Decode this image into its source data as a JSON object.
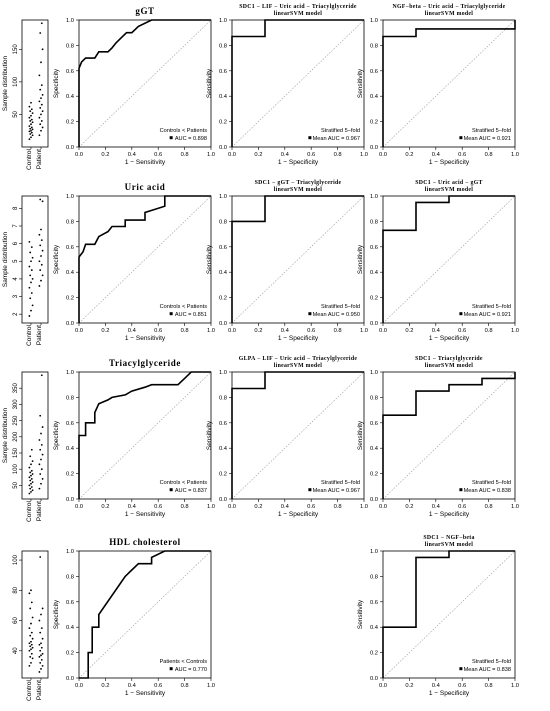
{
  "chart_data": {
    "type": "roc_figure",
    "rows": [
      {
        "strip": {
          "ylabel": "Sample distribution",
          "xlabels": [
            "Control",
            "Patient"
          ],
          "ylim": [
            0,
            195
          ],
          "yticks": [
            50,
            100,
            150
          ],
          "control": [
            12,
            15,
            18,
            20,
            22,
            24,
            25,
            27,
            28,
            30,
            32,
            35,
            38,
            40,
            42,
            45,
            48,
            52,
            55,
            58,
            62,
            68
          ],
          "patient": [
            18,
            25,
            30,
            35,
            40,
            45,
            50,
            55,
            60,
            65,
            70,
            75,
            80,
            88,
            95,
            110,
            130,
            150,
            175,
            190
          ]
        },
        "roc": [
          {
            "title": "gGT",
            "title_lines": [],
            "ylabel": "Specificity",
            "xlabel": "1 − Sensitivity",
            "legend": [
              "Controls < Patients",
              "AUC = 0.898"
            ],
            "legend_marker": 1,
            "curve": [
              [
                0,
                0
              ],
              [
                0,
                0.62
              ],
              [
                0.02,
                0.67
              ],
              [
                0.05,
                0.7
              ],
              [
                0.12,
                0.7
              ],
              [
                0.15,
                0.75
              ],
              [
                0.22,
                0.75
              ],
              [
                0.25,
                0.78
              ],
              [
                0.28,
                0.82
              ],
              [
                0.32,
                0.86
              ],
              [
                0.36,
                0.9
              ],
              [
                0.4,
                0.9
              ],
              [
                0.45,
                0.95
              ],
              [
                0.55,
                1.0
              ],
              [
                1.0,
                1.0
              ]
            ]
          },
          {
            "title": "",
            "title_lines": [
              "SDC1 − LIF − Uric acid − Triacylglyceride",
              "linearSVM model"
            ],
            "ylabel": "Sensitivity",
            "xlabel": "1 − Specificity",
            "legend": [
              "Stratified 5−fold",
              "Mean AUC = 0.967"
            ],
            "legend_marker": 1,
            "curve": [
              [
                0,
                0
              ],
              [
                0,
                0.87
              ],
              [
                0.25,
                0.87
              ],
              [
                0.25,
                1.0
              ],
              [
                1.0,
                1.0
              ]
            ]
          },
          {
            "title": "",
            "title_lines": [
              "NGF−beta − Uric acid − Triacylglyceride",
              "linearSVM model"
            ],
            "ylabel": "Sensitivity",
            "xlabel": "1 − Specificity",
            "legend": [
              "Stratified 5−fold",
              "Mean AUC = 0.921"
            ],
            "legend_marker": 1,
            "curve": [
              [
                0,
                0
              ],
              [
                0,
                0.87
              ],
              [
                0.25,
                0.87
              ],
              [
                0.25,
                0.93
              ],
              [
                1.0,
                0.93
              ],
              [
                1.0,
                1.0
              ]
            ]
          }
        ]
      },
      {
        "strip": {
          "ylabel": "Sample distribution",
          "xlabels": [
            "Control",
            "Patient"
          ],
          "ylim": [
            1.5,
            8.7
          ],
          "yticks": [
            2,
            3,
            4,
            5,
            6,
            7,
            8
          ],
          "control": [
            1.9,
            2.2,
            2.5,
            2.9,
            3.2,
            3.5,
            3.8,
            4.0,
            4.2,
            4.5,
            4.7,
            5.0,
            5.2,
            5.5,
            5.8,
            6.1
          ],
          "patient": [
            3.6,
            3.9,
            4.2,
            4.5,
            4.8,
            5.0,
            5.3,
            5.6,
            5.9,
            6.2,
            6.5,
            6.8,
            8.4,
            8.5
          ]
        },
        "roc": [
          {
            "title": "Uric acid",
            "title_lines": [],
            "ylabel": "Specificity",
            "xlabel": "1 − Sensitivity",
            "legend": [
              "Controls < Patients",
              "AUC = 0.851"
            ],
            "legend_marker": 1,
            "curve": [
              [
                0,
                0
              ],
              [
                0,
                0.52
              ],
              [
                0.03,
                0.56
              ],
              [
                0.05,
                0.62
              ],
              [
                0.12,
                0.62
              ],
              [
                0.15,
                0.68
              ],
              [
                0.22,
                0.72
              ],
              [
                0.25,
                0.76
              ],
              [
                0.35,
                0.76
              ],
              [
                0.35,
                0.81
              ],
              [
                0.5,
                0.81
              ],
              [
                0.5,
                0.87
              ],
              [
                0.65,
                0.92
              ],
              [
                0.65,
                1.0
              ],
              [
                1.0,
                1.0
              ]
            ]
          },
          {
            "title": "",
            "title_lines": [
              "SDC1 − gGT − Triacylglyceride",
              "linearSVM model"
            ],
            "ylabel": "Sensitivity",
            "xlabel": "1 − Specificity",
            "legend": [
              "Stratified 5−fold",
              "Mean AUC = 0.950"
            ],
            "legend_marker": 1,
            "curve": [
              [
                0,
                0
              ],
              [
                0,
                0.8
              ],
              [
                0.25,
                0.8
              ],
              [
                0.25,
                1.0
              ],
              [
                1.0,
                1.0
              ]
            ]
          },
          {
            "title": "",
            "title_lines": [
              "SDC1 − Uric acid − gGT",
              "linearSVM model"
            ],
            "ylabel": "Sensitivity",
            "xlabel": "1 − Specificity",
            "legend": [
              "Stratified 5−fold",
              "Mean AUC = 0.921"
            ],
            "legend_marker": 1,
            "curve": [
              [
                0,
                0
              ],
              [
                0,
                0.73
              ],
              [
                0.25,
                0.73
              ],
              [
                0.25,
                0.95
              ],
              [
                0.5,
                0.95
              ],
              [
                0.5,
                1.0
              ],
              [
                1.0,
                1.0
              ]
            ]
          }
        ]
      },
      {
        "strip": {
          "ylabel": "Sample distribution",
          "xlabels": [
            "Control",
            "Patient"
          ],
          "ylim": [
            8,
            400
          ],
          "yticks": [
            50,
            100,
            150,
            200,
            250,
            300,
            350
          ],
          "control": [
            25,
            30,
            35,
            40,
            45,
            50,
            55,
            60,
            65,
            70,
            75,
            80,
            85,
            90,
            95,
            105,
            115,
            125,
            140,
            160
          ],
          "patient": [
            40,
            55,
            70,
            85,
            100,
            115,
            130,
            145,
            160,
            175,
            190,
            210,
            230,
            265,
            390
          ]
        },
        "roc": [
          {
            "title": "Triacylglyceride",
            "title_lines": [],
            "ylabel": "Specificity",
            "xlabel": "1 − Sensitivity",
            "legend": [
              "Controls < Patients",
              "AUC = 0.837"
            ],
            "legend_marker": 1,
            "curve": [
              [
                0,
                0
              ],
              [
                0,
                0.5
              ],
              [
                0.05,
                0.5
              ],
              [
                0.05,
                0.6
              ],
              [
                0.12,
                0.6
              ],
              [
                0.12,
                0.68
              ],
              [
                0.15,
                0.75
              ],
              [
                0.22,
                0.78
              ],
              [
                0.25,
                0.8
              ],
              [
                0.35,
                0.82
              ],
              [
                0.4,
                0.85
              ],
              [
                0.5,
                0.88
              ],
              [
                0.55,
                0.9
              ],
              [
                0.75,
                0.9
              ],
              [
                0.8,
                0.95
              ],
              [
                0.85,
                1.0
              ],
              [
                1.0,
                1.0
              ]
            ]
          },
          {
            "title": "",
            "title_lines": [
              "GLPA − LIF − Uric acid − Triacylglyceride",
              "linearSVM model"
            ],
            "ylabel": "Sensitivity",
            "xlabel": "1 − Specificity",
            "legend": [
              "Stratified 5−fold",
              "Mean AUC = 0.967"
            ],
            "legend_marker": 1,
            "curve": [
              [
                0,
                0
              ],
              [
                0,
                0.87
              ],
              [
                0.25,
                0.87
              ],
              [
                0.25,
                1.0
              ],
              [
                1.0,
                1.0
              ]
            ]
          },
          {
            "title": "",
            "title_lines": [
              "SDC1 − Triacylglyceride",
              "linearSVM model"
            ],
            "ylabel": "Sensitivity",
            "xlabel": "1 − Specificity",
            "legend": [
              "Stratified 5−fold",
              "Mean AUC = 0.838"
            ],
            "legend_marker": 1,
            "curve": [
              [
                0,
                0
              ],
              [
                0,
                0.66
              ],
              [
                0.25,
                0.66
              ],
              [
                0.25,
                0.85
              ],
              [
                0.5,
                0.85
              ],
              [
                0.5,
                0.9
              ],
              [
                0.75,
                0.9
              ],
              [
                0.75,
                0.95
              ],
              [
                1.0,
                0.95
              ],
              [
                1.0,
                1.0
              ]
            ]
          }
        ]
      },
      {
        "strip": {
          "ylabel": "",
          "xlabels": [
            "Control",
            "Patient"
          ],
          "ylim": [
            22,
            106
          ],
          "yticks": [
            40,
            60,
            80,
            100
          ],
          "control": [
            30,
            32,
            35,
            36,
            38,
            40,
            41,
            42,
            43,
            44,
            45,
            46,
            48,
            50,
            52,
            55,
            58,
            62,
            68,
            72,
            78,
            80
          ],
          "patient": [
            26,
            28,
            30,
            32,
            34,
            36,
            37,
            38,
            40,
            42,
            44,
            45,
            48,
            52,
            55,
            60,
            64,
            68,
            102
          ]
        },
        "roc": [
          {
            "title": "HDL cholesterol",
            "title_lines": [],
            "ylabel": "Specificity",
            "xlabel": "1 − Sensitivity",
            "legend": [
              "Patients < Controls",
              "AUC = 0.770"
            ],
            "legend_marker": 1,
            "curve": [
              [
                0,
                0
              ],
              [
                0.07,
                0
              ],
              [
                0.07,
                0.2
              ],
              [
                0.1,
                0.2
              ],
              [
                0.1,
                0.4
              ],
              [
                0.15,
                0.4
              ],
              [
                0.15,
                0.5
              ],
              [
                0.35,
                0.8
              ],
              [
                0.4,
                0.85
              ],
              [
                0.45,
                0.9
              ],
              [
                0.55,
                0.9
              ],
              [
                0.55,
                0.95
              ],
              [
                0.65,
                1.0
              ],
              [
                1.0,
                1.0
              ]
            ]
          },
          null,
          {
            "title": "",
            "title_lines": [
              "SDC1 − NGF−beta",
              "linearSVM model"
            ],
            "ylabel": "Sensitivity",
            "xlabel": "1 − Specificity",
            "legend": [
              "Stratified 5−fold",
              "Mean AUC = 0.838"
            ],
            "legend_marker": 1,
            "curve": [
              [
                0,
                0
              ],
              [
                0,
                0.4
              ],
              [
                0.25,
                0.4
              ],
              [
                0.25,
                0.95
              ],
              [
                0.5,
                0.95
              ],
              [
                0.5,
                1.0
              ],
              [
                1.0,
                1.0
              ]
            ]
          }
        ]
      }
    ],
    "roc_ticks": [
      0.0,
      0.2,
      0.4,
      0.6,
      0.8,
      1.0
    ],
    "roc_tick_labels": [
      "0.0",
      "0.2",
      "0.4",
      "0.6",
      "0.8",
      "1.0"
    ],
    "roc_xlim": [
      0,
      1
    ],
    "roc_ylim": [
      0,
      1
    ],
    "diagonal": "dotted"
  }
}
